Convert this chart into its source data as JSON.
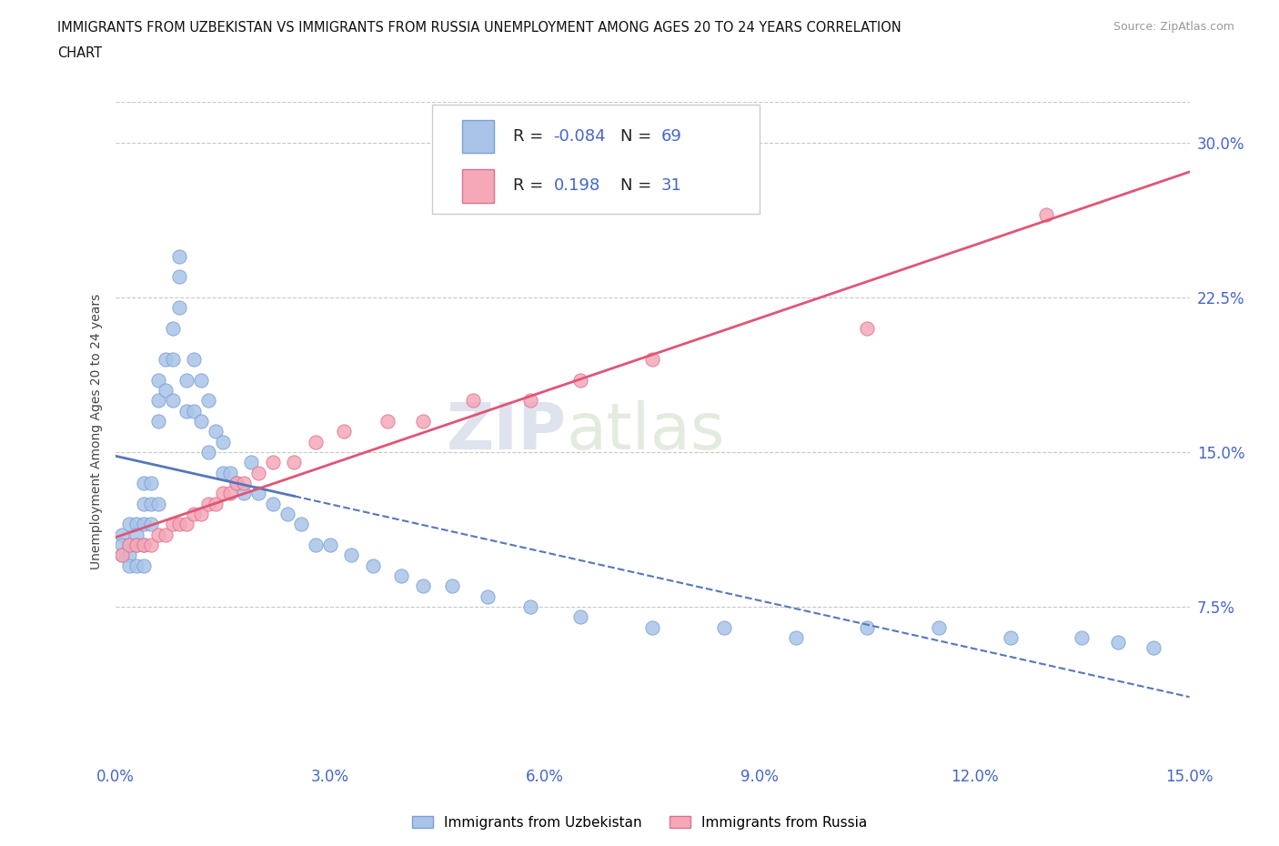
{
  "title_line1": "IMMIGRANTS FROM UZBEKISTAN VS IMMIGRANTS FROM RUSSIA UNEMPLOYMENT AMONG AGES 20 TO 24 YEARS CORRELATION",
  "title_line2": "CHART",
  "source": "Source: ZipAtlas.com",
  "ylabel": "Unemployment Among Ages 20 to 24 years",
  "xmin": 0.0,
  "xmax": 0.15,
  "ymin": 0.0,
  "ymax": 0.32,
  "yticks": [
    0.075,
    0.15,
    0.225,
    0.3
  ],
  "ytick_labels": [
    "7.5%",
    "15.0%",
    "22.5%",
    "30.0%"
  ],
  "xticks": [
    0.0,
    0.03,
    0.06,
    0.09,
    0.12,
    0.15
  ],
  "xtick_labels": [
    "0.0%",
    "3.0%",
    "6.0%",
    "9.0%",
    "12.0%",
    "15.0%"
  ],
  "legend_R1": "-0.084",
  "legend_N1": "69",
  "legend_R2": "0.198",
  "legend_N2": "31",
  "color_uzbekistan": "#aac4e8",
  "color_russia": "#f4a8b8",
  "edge_color_uzbekistan": "#7a9fd4",
  "edge_color_russia": "#e07090",
  "line_color_uzbekistan": "#5577bb",
  "line_color_russia": "#e05575",
  "grid_color": "#c8c8c8",
  "tick_label_color": "#4466cc",
  "background_color": "#ffffff",
  "uzbekistan_x": [
    0.001,
    0.001,
    0.001,
    0.002,
    0.002,
    0.002,
    0.002,
    0.003,
    0.003,
    0.003,
    0.003,
    0.004,
    0.004,
    0.004,
    0.004,
    0.004,
    0.005,
    0.005,
    0.005,
    0.006,
    0.006,
    0.006,
    0.006,
    0.007,
    0.007,
    0.008,
    0.008,
    0.008,
    0.009,
    0.009,
    0.009,
    0.01,
    0.01,
    0.011,
    0.011,
    0.012,
    0.012,
    0.013,
    0.013,
    0.014,
    0.015,
    0.015,
    0.016,
    0.017,
    0.018,
    0.019,
    0.02,
    0.022,
    0.024,
    0.026,
    0.028,
    0.03,
    0.033,
    0.036,
    0.04,
    0.043,
    0.047,
    0.052,
    0.058,
    0.065,
    0.075,
    0.085,
    0.095,
    0.105,
    0.115,
    0.125,
    0.135,
    0.14,
    0.145
  ],
  "uzbekistan_y": [
    0.11,
    0.105,
    0.1,
    0.115,
    0.105,
    0.1,
    0.095,
    0.115,
    0.11,
    0.105,
    0.095,
    0.135,
    0.125,
    0.115,
    0.105,
    0.095,
    0.135,
    0.125,
    0.115,
    0.185,
    0.175,
    0.165,
    0.125,
    0.195,
    0.18,
    0.21,
    0.195,
    0.175,
    0.245,
    0.235,
    0.22,
    0.185,
    0.17,
    0.195,
    0.17,
    0.185,
    0.165,
    0.175,
    0.15,
    0.16,
    0.155,
    0.14,
    0.14,
    0.135,
    0.13,
    0.145,
    0.13,
    0.125,
    0.12,
    0.115,
    0.105,
    0.105,
    0.1,
    0.095,
    0.09,
    0.085,
    0.085,
    0.08,
    0.075,
    0.07,
    0.065,
    0.065,
    0.06,
    0.065,
    0.065,
    0.06,
    0.06,
    0.058,
    0.055
  ],
  "russia_x": [
    0.001,
    0.002,
    0.003,
    0.004,
    0.005,
    0.006,
    0.007,
    0.008,
    0.009,
    0.01,
    0.011,
    0.012,
    0.013,
    0.014,
    0.015,
    0.016,
    0.017,
    0.018,
    0.02,
    0.022,
    0.025,
    0.028,
    0.032,
    0.038,
    0.043,
    0.05,
    0.058,
    0.065,
    0.075,
    0.105,
    0.13
  ],
  "russia_y": [
    0.1,
    0.105,
    0.105,
    0.105,
    0.105,
    0.11,
    0.11,
    0.115,
    0.115,
    0.115,
    0.12,
    0.12,
    0.125,
    0.125,
    0.13,
    0.13,
    0.135,
    0.135,
    0.14,
    0.145,
    0.145,
    0.155,
    0.16,
    0.165,
    0.165,
    0.175,
    0.175,
    0.185,
    0.195,
    0.21,
    0.265
  ]
}
